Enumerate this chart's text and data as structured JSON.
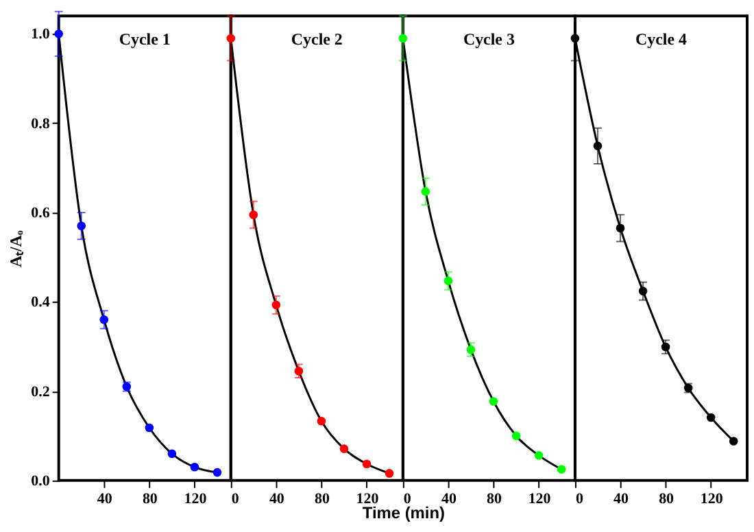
{
  "chart_data": [
    {
      "type": "scatter",
      "annotations": [
        "Cycle 1"
      ],
      "ylabel": "Aₜ/Aₒ",
      "x": [
        0,
        20,
        40,
        60,
        80,
        100,
        120,
        140
      ],
      "xlim": [
        0,
        152
      ],
      "xticks": [
        40,
        80,
        120
      ],
      "ylim": [
        0,
        1.04
      ],
      "yticks": [
        {
          "value": 0,
          "label": "0.0"
        },
        0.2,
        0.4,
        0.6,
        0.8,
        {
          "value": 1,
          "label": "1.0"
        }
      ],
      "grid": false,
      "series": [
        {
          "type": "line",
          "marker": "none",
          "color": "#000000",
          "values": [
            1.0,
            0.57,
            0.36,
            0.21,
            0.118,
            0.06,
            0.03,
            0.018
          ]
        },
        {
          "marker": "circle",
          "color": "#0000ff",
          "values": [
            1.0,
            0.57,
            0.36,
            0.21,
            0.118,
            0.06,
            0.03,
            0.018
          ],
          "errors": [
            0.05,
            0.03,
            0.02,
            0.01,
            null,
            null,
            null,
            null
          ]
        }
      ]
    },
    {
      "type": "scatter",
      "annotations": [
        "Cycle 2"
      ],
      "xlabel": "Time (min)",
      "x": [
        0,
        20,
        40,
        60,
        80,
        100,
        120,
        140
      ],
      "xlim": [
        0,
        152
      ],
      "xticks": [
        0,
        40,
        80,
        120
      ],
      "ylim": [
        0,
        1.04
      ],
      "tick_labels": "x",
      "grid": false,
      "series": [
        {
          "type": "line",
          "marker": "none",
          "color": "#000000",
          "values": [
            0.99,
            0.595,
            0.393,
            0.245,
            0.133,
            0.071,
            0.037,
            0.016
          ]
        },
        {
          "marker": "circle",
          "color": "#ff0000",
          "values": [
            0.99,
            0.595,
            0.393,
            0.245,
            0.133,
            0.071,
            0.037,
            0.016
          ],
          "errors": [
            0.05,
            0.03,
            0.02,
            0.015,
            null,
            null,
            null,
            null
          ]
        }
      ]
    },
    {
      "type": "scatter",
      "annotations": [
        "Cycle 3"
      ],
      "x": [
        0,
        20,
        40,
        60,
        80,
        100,
        120,
        140
      ],
      "xlim": [
        0,
        152
      ],
      "xticks": [
        0,
        40,
        80,
        120
      ],
      "ylim": [
        0,
        1.04
      ],
      "tick_labels": "x",
      "grid": false,
      "series": [
        {
          "type": "line",
          "marker": "none",
          "color": "#000000",
          "values": [
            0.99,
            0.647,
            0.447,
            0.293,
            0.177,
            0.1,
            0.056,
            0.025
          ]
        },
        {
          "marker": "circle",
          "color": "#00ff00",
          "values": [
            0.99,
            0.647,
            0.447,
            0.293,
            0.177,
            0.1,
            0.056,
            0.025
          ],
          "errors": [
            0.05,
            0.03,
            0.02,
            0.015,
            null,
            null,
            null,
            null
          ]
        }
      ]
    },
    {
      "type": "scatter",
      "annotations": [
        "Cycle 4"
      ],
      "x": [
        0,
        20,
        40,
        60,
        80,
        100,
        120,
        140
      ],
      "xlim": [
        0,
        152
      ],
      "xticks": [
        0,
        40,
        80,
        120
      ],
      "ylim": [
        0,
        1.04
      ],
      "tick_labels": "x",
      "grid": false,
      "series": [
        {
          "type": "line",
          "marker": "none",
          "color": "#000000",
          "values": [
            0.99,
            0.749,
            0.565,
            0.424,
            0.299,
            0.207,
            0.141,
            0.088
          ]
        },
        {
          "marker": "circle",
          "color": "#000000",
          "values": [
            0.99,
            0.749,
            0.565,
            0.424,
            0.299,
            0.207,
            0.141,
            0.088
          ],
          "errors": [
            0.05,
            0.04,
            0.03,
            0.02,
            0.015,
            0.01,
            null,
            null
          ]
        }
      ]
    }
  ]
}
